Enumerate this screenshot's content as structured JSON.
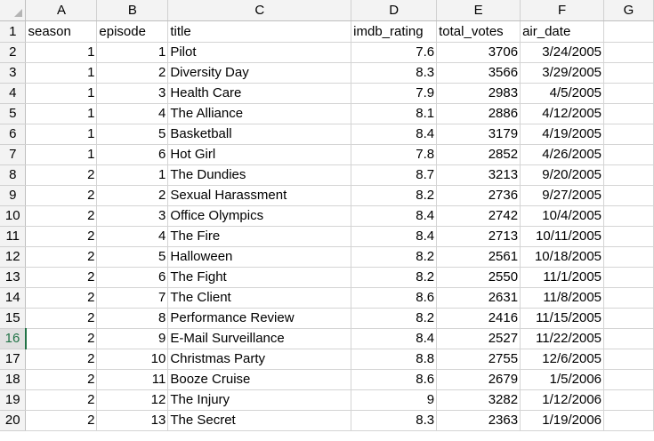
{
  "columns": [
    "A",
    "B",
    "C",
    "D",
    "E",
    "F",
    "G"
  ],
  "headers": [
    "season",
    "episode",
    "title",
    "imdb_rating",
    "total_votes",
    "air_date"
  ],
  "header_row_number": "1",
  "active_row": "16",
  "rows": [
    {
      "row": "2",
      "season": "1",
      "episode": "1",
      "title": "Pilot",
      "imdb_rating": "7.6",
      "total_votes": "3706",
      "air_date": "3/24/2005"
    },
    {
      "row": "3",
      "season": "1",
      "episode": "2",
      "title": "Diversity Day",
      "imdb_rating": "8.3",
      "total_votes": "3566",
      "air_date": "3/29/2005"
    },
    {
      "row": "4",
      "season": "1",
      "episode": "3",
      "title": "Health Care",
      "imdb_rating": "7.9",
      "total_votes": "2983",
      "air_date": "4/5/2005"
    },
    {
      "row": "5",
      "season": "1",
      "episode": "4",
      "title": "The Alliance",
      "imdb_rating": "8.1",
      "total_votes": "2886",
      "air_date": "4/12/2005"
    },
    {
      "row": "6",
      "season": "1",
      "episode": "5",
      "title": "Basketball",
      "imdb_rating": "8.4",
      "total_votes": "3179",
      "air_date": "4/19/2005"
    },
    {
      "row": "7",
      "season": "1",
      "episode": "6",
      "title": "Hot Girl",
      "imdb_rating": "7.8",
      "total_votes": "2852",
      "air_date": "4/26/2005"
    },
    {
      "row": "8",
      "season": "2",
      "episode": "1",
      "title": "The Dundies",
      "imdb_rating": "8.7",
      "total_votes": "3213",
      "air_date": "9/20/2005"
    },
    {
      "row": "9",
      "season": "2",
      "episode": "2",
      "title": "Sexual Harassment",
      "imdb_rating": "8.2",
      "total_votes": "2736",
      "air_date": "9/27/2005"
    },
    {
      "row": "10",
      "season": "2",
      "episode": "3",
      "title": "Office Olympics",
      "imdb_rating": "8.4",
      "total_votes": "2742",
      "air_date": "10/4/2005"
    },
    {
      "row": "11",
      "season": "2",
      "episode": "4",
      "title": "The Fire",
      "imdb_rating": "8.4",
      "total_votes": "2713",
      "air_date": "10/11/2005"
    },
    {
      "row": "12",
      "season": "2",
      "episode": "5",
      "title": "Halloween",
      "imdb_rating": "8.2",
      "total_votes": "2561",
      "air_date": "10/18/2005"
    },
    {
      "row": "13",
      "season": "2",
      "episode": "6",
      "title": "The Fight",
      "imdb_rating": "8.2",
      "total_votes": "2550",
      "air_date": "11/1/2005"
    },
    {
      "row": "14",
      "season": "2",
      "episode": "7",
      "title": "The Client",
      "imdb_rating": "8.6",
      "total_votes": "2631",
      "air_date": "11/8/2005"
    },
    {
      "row": "15",
      "season": "2",
      "episode": "8",
      "title": "Performance Review",
      "imdb_rating": "8.2",
      "total_votes": "2416",
      "air_date": "11/15/2005"
    },
    {
      "row": "16",
      "season": "2",
      "episode": "9",
      "title": "E-Mail Surveillance",
      "imdb_rating": "8.4",
      "total_votes": "2527",
      "air_date": "11/22/2005"
    },
    {
      "row": "17",
      "season": "2",
      "episode": "10",
      "title": "Christmas Party",
      "imdb_rating": "8.8",
      "total_votes": "2755",
      "air_date": "12/6/2005"
    },
    {
      "row": "18",
      "season": "2",
      "episode": "11",
      "title": "Booze Cruise",
      "imdb_rating": "8.6",
      "total_votes": "2679",
      "air_date": "1/5/2006"
    },
    {
      "row": "19",
      "season": "2",
      "episode": "12",
      "title": "The Injury",
      "imdb_rating": "9",
      "total_votes": "3282",
      "air_date": "1/12/2006"
    },
    {
      "row": "20",
      "season": "2",
      "episode": "13",
      "title": "The Secret",
      "imdb_rating": "8.3",
      "total_votes": "2363",
      "air_date": "1/19/2006"
    }
  ],
  "colors": {
    "grid": "#d4d4d4",
    "header_bg": "#f3f3f3",
    "active_row_accent": "#217346"
  }
}
